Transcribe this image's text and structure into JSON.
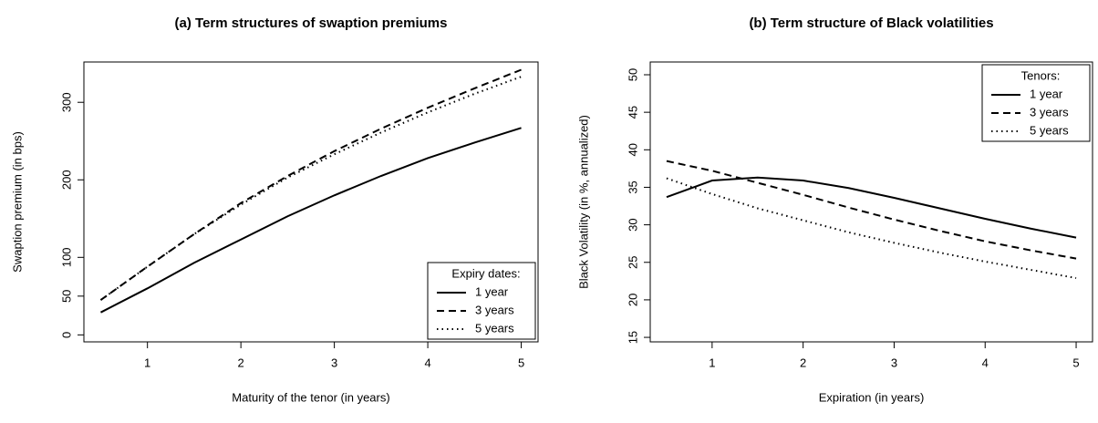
{
  "chart_data": [
    {
      "type": "line",
      "title": "(a) Term structures of swaption premiums",
      "xlabel": "Maturity of the tenor (in years)",
      "ylabel": "Swaption premium (in bps)",
      "x": [
        0.5,
        1,
        1.5,
        2,
        2.5,
        3,
        3.5,
        4,
        4.5,
        5
      ],
      "xlim": [
        0.32,
        5.18
      ],
      "xticks": [
        1,
        2,
        3,
        4,
        5
      ],
      "ylim": [
        -9,
        352
      ],
      "yticks": [
        0,
        50,
        100,
        200,
        300
      ],
      "legend_title": "Expiry dates:",
      "legend_position": "bottomright",
      "series": [
        {
          "name": "1 year",
          "color": "#000000",
          "linestyle": "solid",
          "values": [
            29,
            60,
            93,
            123,
            153,
            180,
            205,
            228,
            248,
            267
          ]
        },
        {
          "name": "3 years",
          "color": "#000000",
          "linestyle": "dashed",
          "values": [
            45,
            88,
            130,
            170,
            205,
            237,
            266,
            293,
            318,
            342
          ]
        },
        {
          "name": "5 years",
          "color": "#000000",
          "linestyle": "dotted",
          "values": [
            45,
            88,
            130,
            168,
            203,
            233,
            261,
            287,
            311,
            333
          ]
        }
      ]
    },
    {
      "type": "line",
      "title": "(b) Term structure of Black volatilities",
      "xlabel": "Expiration (in years)",
      "ylabel": "Black Volatility (in %, annualized)",
      "x": [
        0.5,
        1,
        1.5,
        2,
        2.5,
        3,
        3.5,
        4,
        4.5,
        5
      ],
      "xlim": [
        0.32,
        5.18
      ],
      "xticks": [
        1,
        2,
        3,
        4,
        5
      ],
      "ylim": [
        14.4,
        51.7
      ],
      "yticks": [
        15,
        20,
        25,
        30,
        35,
        40,
        45,
        50
      ],
      "legend_title": "Tenors:",
      "legend_position": "topright",
      "series": [
        {
          "name": "1 year",
          "color": "#000000",
          "linestyle": "solid",
          "values": [
            33.7,
            35.9,
            36.3,
            35.9,
            34.9,
            33.6,
            32.2,
            30.8,
            29.5,
            28.3
          ]
        },
        {
          "name": "3 years",
          "color": "#000000",
          "linestyle": "dashed",
          "values": [
            38.5,
            37.2,
            35.6,
            34.0,
            32.3,
            30.7,
            29.2,
            27.8,
            26.6,
            25.5
          ]
        },
        {
          "name": "5 years",
          "color": "#000000",
          "linestyle": "dotted",
          "values": [
            36.2,
            34.1,
            32.2,
            30.6,
            29.0,
            27.6,
            26.3,
            25.1,
            24.0,
            22.9
          ]
        }
      ]
    }
  ]
}
